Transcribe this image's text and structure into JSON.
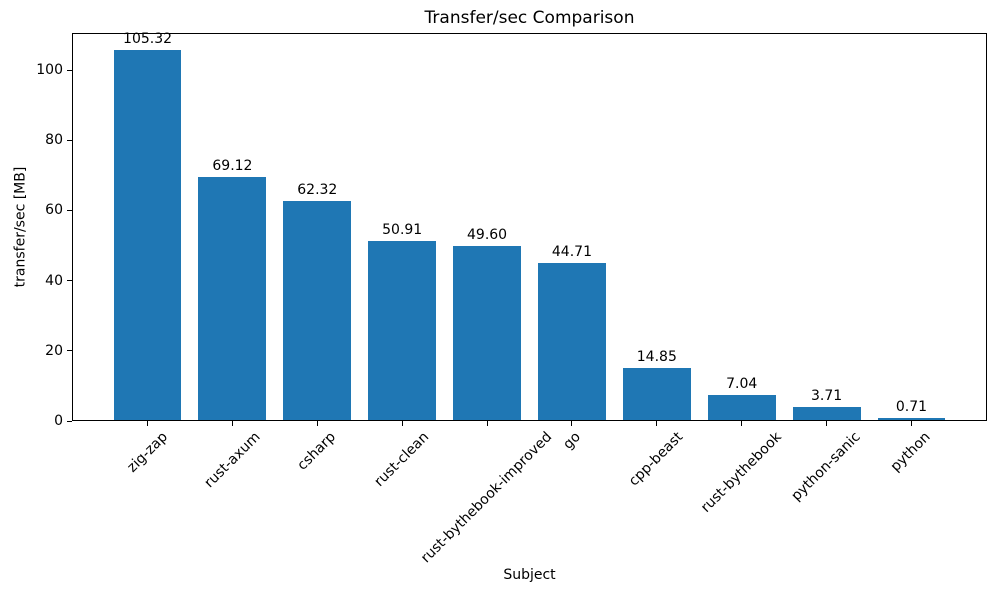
{
  "chart_data": {
    "type": "bar",
    "title": "Transfer/sec Comparison",
    "xlabel": "Subject",
    "ylabel": "transfer/sec [MB]",
    "categories": [
      "zig-zap",
      "rust-axum",
      "csharp",
      "rust-clean",
      "rust-bythebook-improved",
      "go",
      "cpp-beast",
      "rust-bythebook",
      "python-sanic",
      "python"
    ],
    "values": [
      105.32,
      69.12,
      62.32,
      50.91,
      49.6,
      44.71,
      14.85,
      7.04,
      3.71,
      0.71
    ],
    "bar_labels": [
      "105.32",
      "69.12",
      "62.32",
      "50.91",
      "49.60",
      "44.71",
      "14.85",
      "7.04",
      "3.71",
      "0.71"
    ],
    "yticks": [
      0,
      20,
      40,
      60,
      80,
      100
    ],
    "ylim": [
      0,
      110.59
    ],
    "xtick_rotation_deg": 45,
    "bar_color": "#1f77b4",
    "text_color": "#000000",
    "background_color": "#ffffff",
    "grid": false,
    "legend": "none"
  }
}
